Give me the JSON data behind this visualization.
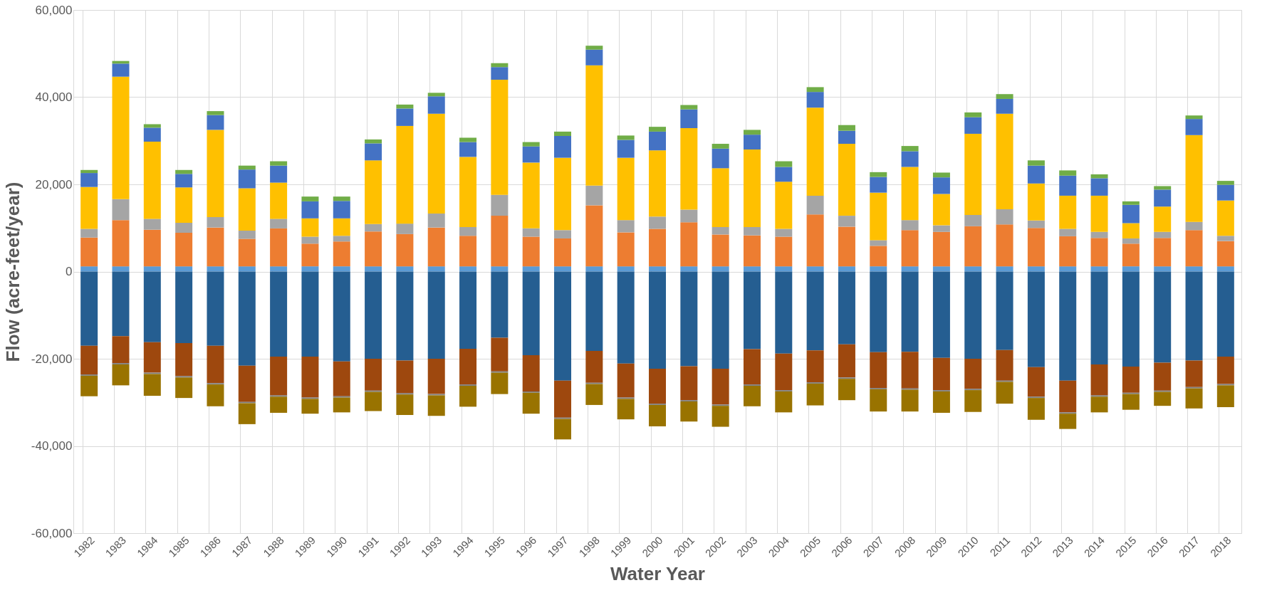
{
  "chart_data": {
    "type": "bar",
    "stacked": true,
    "xlabel": "Water Year",
    "ylabel": "Flow (acre-feet/year)",
    "categories": [
      "1982",
      "1983",
      "1984",
      "1985",
      "1986",
      "1987",
      "1988",
      "1989",
      "1990",
      "1991",
      "1992",
      "1993",
      "1994",
      "1995",
      "1996",
      "1997",
      "1998",
      "1999",
      "2000",
      "2001",
      "2002",
      "2003",
      "2004",
      "2005",
      "2006",
      "2007",
      "2008",
      "2009",
      "2010",
      "2011",
      "2012",
      "2013",
      "2014",
      "2015",
      "2016",
      "2017",
      "2018"
    ],
    "ylim": [
      -60000,
      60000
    ],
    "yticks": [
      {
        "value": -60000,
        "label": "-60,000"
      },
      {
        "value": -40000,
        "label": "-40,000"
      },
      {
        "value": -20000,
        "label": "-20,000"
      },
      0,
      {
        "value": 20000,
        "label": "20,000"
      },
      {
        "value": 40000,
        "label": "40,000"
      },
      {
        "value": 60000,
        "label": "60,000"
      }
    ],
    "grid": true,
    "legend": false,
    "series": [
      {
        "color": "#5b9bd5",
        "values": [
          1200,
          1200,
          1200,
          1200,
          1200,
          1200,
          1200,
          1200,
          1200,
          1200,
          1200,
          1200,
          1200,
          1200,
          1200,
          1200,
          1200,
          1200,
          1200,
          1200,
          1200,
          1200,
          1200,
          1200,
          1200,
          1200,
          1200,
          1200,
          1200,
          1200,
          1200,
          1200,
          1200,
          1200,
          1200,
          1200,
          1200
        ]
      },
      {
        "color": "#ed7d31",
        "values": [
          6600,
          10600,
          8400,
          7700,
          8900,
          6300,
          8700,
          5200,
          5700,
          8000,
          7400,
          8900,
          7000,
          11600,
          6800,
          6400,
          14000,
          7800,
          8600,
          10100,
          7300,
          7100,
          6800,
          11900,
          9100,
          4700,
          8300,
          7900,
          9200,
          9600,
          8800,
          6900,
          6500,
          5200,
          6500,
          8300,
          5800
        ]
      },
      {
        "color": "#a5a5a5",
        "values": [
          2000,
          4800,
          2500,
          2300,
          2400,
          1900,
          2200,
          1600,
          1300,
          1700,
          2400,
          3200,
          2000,
          4800,
          1900,
          1900,
          4500,
          2800,
          2800,
          2900,
          1700,
          1900,
          1800,
          4300,
          2500,
          1300,
          2300,
          1500,
          2600,
          3500,
          1700,
          1700,
          1400,
          1200,
          1400,
          1900,
          1200
        ]
      },
      {
        "color": "#ffc000",
        "values": [
          9600,
          28100,
          17700,
          8100,
          20000,
          9700,
          8300,
          4200,
          4000,
          14600,
          22400,
          22900,
          16100,
          26400,
          15100,
          16600,
          27600,
          14300,
          15200,
          18700,
          13500,
          17800,
          10800,
          20200,
          16500,
          10900,
          12200,
          7200,
          18600,
          21900,
          8500,
          7600,
          8300,
          3500,
          5800,
          19900,
          8100
        ]
      },
      {
        "color": "#4472c4",
        "values": [
          3200,
          3000,
          3200,
          3100,
          3400,
          4300,
          3900,
          3900,
          4000,
          3900,
          4000,
          4000,
          3400,
          2900,
          3700,
          5000,
          3600,
          4100,
          4300,
          4300,
          4500,
          3400,
          3400,
          3600,
          3000,
          3600,
          3600,
          3800,
          3800,
          3400,
          4100,
          4600,
          4000,
          4200,
          3900,
          3700,
          3600
        ]
      },
      {
        "color": "#70ad47",
        "values": [
          700,
          600,
          800,
          900,
          900,
          900,
          1000,
          1100,
          1000,
          900,
          900,
          800,
          1000,
          900,
          1000,
          1000,
          900,
          1000,
          1100,
          1000,
          1100,
          1100,
          1300,
          1100,
          1300,
          1100,
          1200,
          1100,
          1100,
          1100,
          1200,
          1200,
          900,
          800,
          800,
          800,
          900
        ]
      },
      {
        "color": "#255e91",
        "values": [
          -17000,
          -14800,
          -16200,
          -16400,
          -17000,
          -21600,
          -19500,
          -19500,
          -20600,
          -20000,
          -20400,
          -20000,
          -17700,
          -15200,
          -19200,
          -25000,
          -18200,
          -21100,
          -22300,
          -21700,
          -22300,
          -17800,
          -18800,
          -18100,
          -16700,
          -18500,
          -18400,
          -19800,
          -20000,
          -18000,
          -21900,
          -25000,
          -21300,
          -21800,
          -20900,
          -20400,
          -19500
        ]
      },
      {
        "color": "#9e480e",
        "values": [
          -6600,
          -6200,
          -7000,
          -7600,
          -8600,
          -8300,
          -8900,
          -9400,
          -8000,
          -7300,
          -7500,
          -8100,
          -8200,
          -7700,
          -8300,
          -8500,
          -7300,
          -7800,
          -8000,
          -7800,
          -8200,
          -8100,
          -8400,
          -7300,
          -7600,
          -8200,
          -8400,
          -7400,
          -6900,
          -7000,
          -6800,
          -7300,
          -7100,
          -6000,
          -6400,
          -6100,
          -6300
        ]
      },
      {
        "color": "#7f7f7f",
        "values": [
          -300,
          -300,
          -300,
          -300,
          -300,
          -300,
          -300,
          -300,
          -300,
          -300,
          -300,
          -300,
          -300,
          -300,
          -300,
          -300,
          -300,
          -300,
          -300,
          -300,
          -300,
          -300,
          -300,
          -300,
          -300,
          -300,
          -300,
          -300,
          -300,
          -300,
          -300,
          -300,
          -300,
          -300,
          -300,
          -300,
          -300
        ]
      },
      {
        "color": "#997300",
        "values": [
          -4700,
          -4800,
          -5000,
          -4700,
          -5000,
          -4800,
          -3700,
          -3400,
          -3400,
          -4400,
          -4700,
          -4700,
          -4800,
          -4900,
          -4800,
          -4700,
          -4800,
          -4700,
          -4900,
          -4600,
          -4800,
          -4700,
          -4800,
          -5000,
          -4900,
          -5100,
          -5000,
          -4900,
          -5000,
          -5000,
          -5000,
          -3500,
          -3600,
          -3600,
          -3200,
          -4600,
          -5000
        ]
      }
    ]
  }
}
